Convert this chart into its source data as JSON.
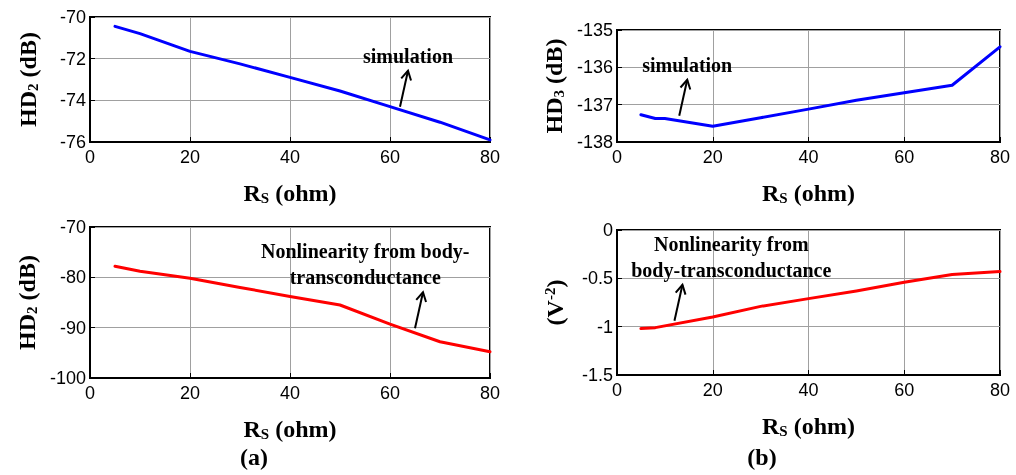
{
  "chart_data": [
    {
      "type": "line",
      "xlabel": "R$_{S}$ (ohm)",
      "ylabel": "HD$_{2}$ (dB)",
      "x": [
        5,
        10,
        20,
        30,
        40,
        50,
        60,
        70,
        80
      ],
      "xlim": [
        0,
        80
      ],
      "xticks": [
        0,
        20,
        40,
        60,
        80
      ],
      "ylim": [
        -76,
        -70
      ],
      "yticks": [
        -76,
        -74,
        -72,
        -70
      ],
      "grid": true,
      "series": [
        {
          "color": "#0000ff",
          "values": [
            -70.45,
            -70.8,
            -71.65,
            -72.25,
            -72.9,
            -73.55,
            -74.3,
            -75.05,
            -75.9
          ]
        }
      ],
      "annotations": [
        {
          "text": "simulation",
          "x": 62,
          "y": -74.4
        }
      ]
    },
    {
      "type": "line",
      "xlabel": "R$_{S}$ (ohm)",
      "ylabel": "HD$_{3}$ (dB)",
      "x": [
        5,
        8,
        10,
        20,
        30,
        40,
        50,
        60,
        70,
        80
      ],
      "xlim": [
        0,
        80
      ],
      "xticks": [
        0,
        20,
        40,
        60,
        80
      ],
      "ylim": [
        -138,
        -135
      ],
      "yticks": [
        -138,
        -137,
        -136,
        -135
      ],
      "grid": true,
      "series": [
        {
          "color": "#0000ff",
          "values": [
            -137.27,
            -137.37,
            -137.37,
            -137.58,
            -137.35,
            -137.12,
            -136.88,
            -136.68,
            -136.48,
            -135.45
          ]
        }
      ],
      "annotations": [
        {
          "text": "simulation",
          "x": 13,
          "y": -137.35
        }
      ]
    },
    {
      "type": "line",
      "xlabel": "R$_{S}$ (ohm)",
      "ylabel": "HD$_{2}$ (dB)",
      "x": [
        5,
        10,
        20,
        30,
        40,
        50,
        60,
        70,
        80
      ],
      "xlim": [
        0,
        80
      ],
      "xticks": [
        0,
        20,
        40,
        60,
        80
      ],
      "ylim": [
        -100,
        -70
      ],
      "yticks": [
        -100,
        -90,
        -80,
        -70
      ],
      "grid": true,
      "series": [
        {
          "color": "#ff0000",
          "values": [
            -77.8,
            -78.8,
            -80.2,
            -82,
            -83.8,
            -85.5,
            -89.3,
            -92.8,
            -94.8
          ]
        }
      ],
      "annotations": [
        {
          "text": "Nonlinearity from body-\ntransconductance",
          "x": 65,
          "y": -90.5
        },
        "(a)"
      ]
    },
    {
      "type": "line",
      "xlabel": "R$_{S}$ (ohm)",
      "ylabel": "(V$^{-2}$)",
      "x": [
        5,
        8,
        20,
        30,
        40,
        50,
        60,
        70,
        80
      ],
      "xlim": [
        0,
        80
      ],
      "xticks": [
        0,
        20,
        40,
        60,
        80
      ],
      "ylim": [
        -1.5,
        0
      ],
      "yticks": [
        -1.5,
        -1,
        -0.5,
        0
      ],
      "grid": true,
      "series": [
        {
          "color": "#ff0000",
          "values": [
            -1.02,
            -1.01,
            -0.9,
            -0.79,
            -0.71,
            -0.63,
            -0.54,
            -0.46,
            -0.43
          ]
        }
      ],
      "annotations": [
        {
          "text": "Nonlinearity from\nbody-transconductance",
          "x": 12,
          "y": -0.96
        },
        "(b)"
      ]
    }
  ]
}
